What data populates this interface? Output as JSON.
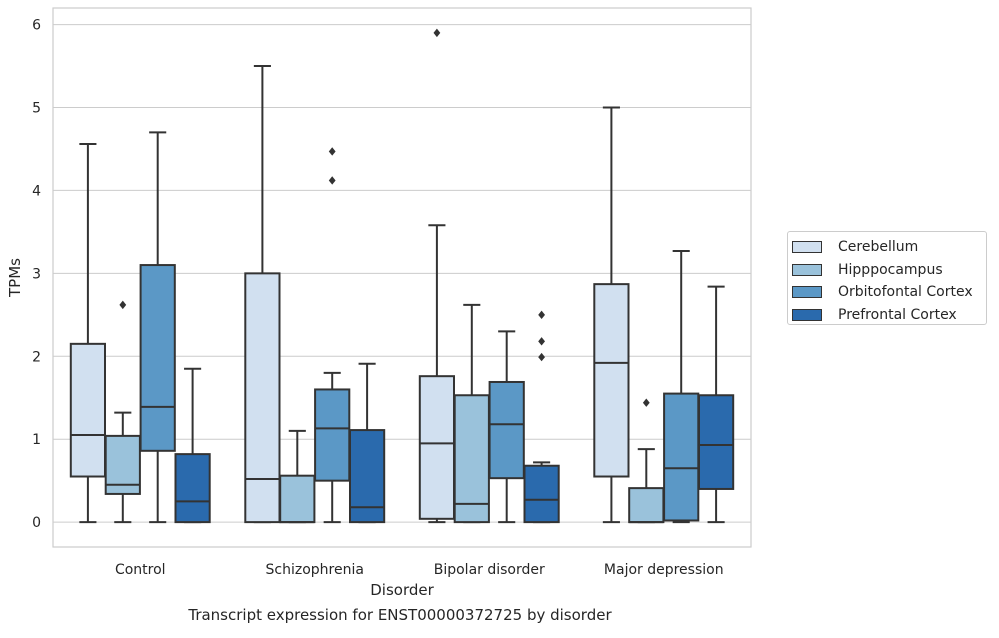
{
  "chart_data": {
    "type": "box",
    "title": "",
    "caption": "Transcript expression for ENST00000372725 by disorder",
    "xlabel": "Disorder",
    "ylabel": "TPMs",
    "ylim": [
      -0.3,
      6.2
    ],
    "yticks": [
      0,
      1,
      2,
      3,
      4,
      5,
      6
    ],
    "grid": true,
    "legend_position": "right",
    "categories": [
      "Control",
      "Schizophrenia",
      "Bipolar disorder",
      "Major depression"
    ],
    "series": [
      {
        "name": "Cerebellum",
        "color": "#d1e0f0",
        "boxes": [
          {
            "whislo": 0.0,
            "q1": 0.55,
            "med": 1.05,
            "q3": 2.15,
            "whishi": 4.56,
            "fliers": []
          },
          {
            "whislo": 0.0,
            "q1": 0.0,
            "med": 0.52,
            "q3": 3.0,
            "whishi": 5.5,
            "fliers": []
          },
          {
            "whislo": 0.0,
            "q1": 0.04,
            "med": 0.95,
            "q3": 1.76,
            "whishi": 3.58,
            "fliers": [
              5.9
            ]
          },
          {
            "whislo": 0.0,
            "q1": 0.55,
            "med": 1.92,
            "q3": 2.87,
            "whishi": 5.0,
            "fliers": []
          }
        ]
      },
      {
        "name": "Hipppocampus",
        "color": "#9ac2db",
        "boxes": [
          {
            "whislo": 0.0,
            "q1": 0.34,
            "med": 0.45,
            "q3": 1.04,
            "whishi": 1.32,
            "fliers": [
              2.62
            ]
          },
          {
            "whislo": 0.0,
            "q1": 0.0,
            "med": 0.0,
            "q3": 0.56,
            "whishi": 1.1,
            "fliers": []
          },
          {
            "whislo": 0.0,
            "q1": 0.0,
            "med": 0.22,
            "q3": 1.53,
            "whishi": 2.62,
            "fliers": []
          },
          {
            "whislo": 0.0,
            "q1": 0.0,
            "med": 0.0,
            "q3": 0.41,
            "whishi": 0.88,
            "fliers": [
              1.44
            ]
          }
        ]
      },
      {
        "name": "Orbitofontal Cortex",
        "color": "#5b98c6",
        "boxes": [
          {
            "whislo": 0.0,
            "q1": 0.86,
            "med": 1.39,
            "q3": 3.1,
            "whishi": 4.7,
            "fliers": []
          },
          {
            "whislo": 0.0,
            "q1": 0.5,
            "med": 1.13,
            "q3": 1.6,
            "whishi": 1.8,
            "fliers": [
              4.12,
              4.47
            ]
          },
          {
            "whislo": 0.0,
            "q1": 0.53,
            "med": 1.18,
            "q3": 1.69,
            "whishi": 2.3,
            "fliers": []
          },
          {
            "whislo": 0.0,
            "q1": 0.02,
            "med": 0.65,
            "q3": 1.55,
            "whishi": 3.27,
            "fliers": []
          }
        ]
      },
      {
        "name": "Prefrontal Cortex",
        "color": "#2a6aad",
        "boxes": [
          {
            "whislo": 0.0,
            "q1": 0.0,
            "med": 0.25,
            "q3": 0.82,
            "whishi": 1.85,
            "fliers": []
          },
          {
            "whislo": 0.0,
            "q1": 0.0,
            "med": 0.18,
            "q3": 1.11,
            "whishi": 1.91,
            "fliers": []
          },
          {
            "whislo": 0.0,
            "q1": 0.0,
            "med": 0.27,
            "q3": 0.68,
            "whishi": 0.72,
            "fliers": [
              1.99,
              2.18,
              2.5
            ]
          },
          {
            "whislo": 0.0,
            "q1": 0.4,
            "med": 0.93,
            "q3": 1.53,
            "whishi": 2.84,
            "fliers": []
          }
        ]
      }
    ]
  }
}
